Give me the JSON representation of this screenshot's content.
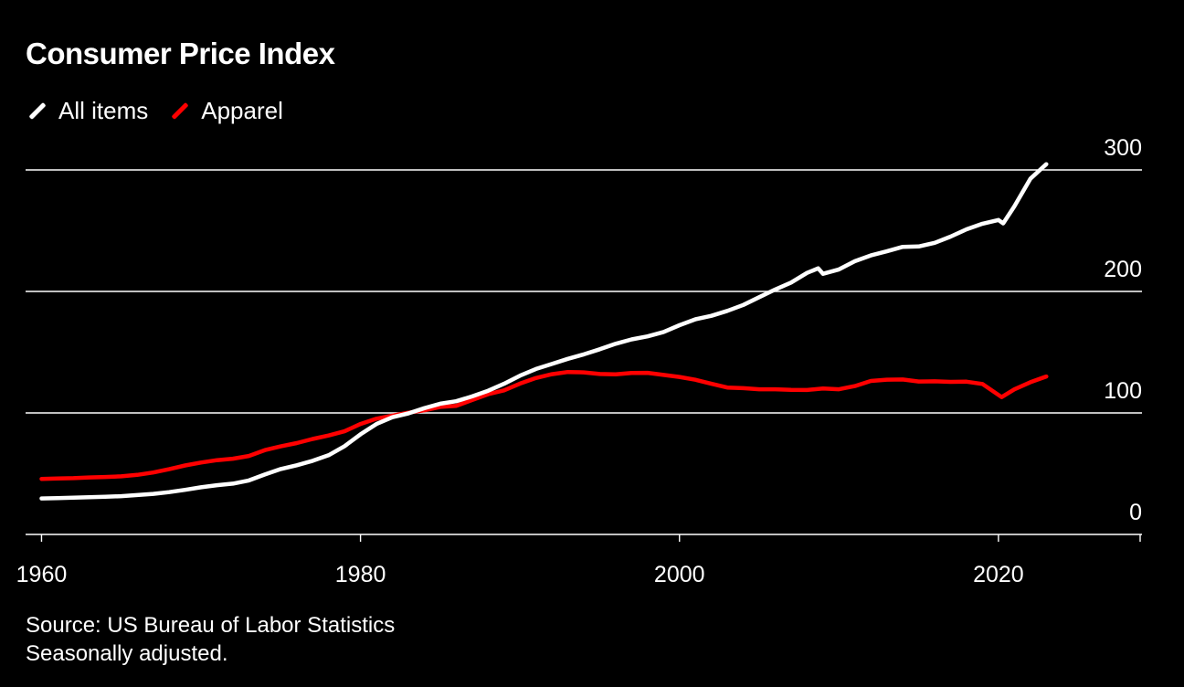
{
  "title": "Consumer Price Index",
  "legend": [
    {
      "label": "All items",
      "color": "#ffffff"
    },
    {
      "label": "Apparel",
      "color": "#ff0000"
    }
  ],
  "footer": {
    "source": "Source: US Bureau of Labor Statistics",
    "note": "Seasonally adjusted."
  },
  "chart_data": {
    "type": "line",
    "title": "Consumer Price Index",
    "xlabel": "",
    "ylabel": "",
    "xlim": [
      1959,
      2029
    ],
    "ylim": [
      0,
      300
    ],
    "x_ticks": [
      {
        "value": 1960,
        "label": "1960"
      },
      {
        "value": 1980,
        "label": "1980"
      },
      {
        "value": 2000,
        "label": "2000"
      },
      {
        "value": 2020,
        "label": "2020"
      }
    ],
    "y_ticks": [
      {
        "value": 0,
        "label": "0"
      },
      {
        "value": 100,
        "label": "100"
      },
      {
        "value": 200,
        "label": "200"
      },
      {
        "value": 300,
        "label": "300"
      }
    ],
    "series": [
      {
        "name": "All items",
        "color": "#ffffff",
        "points": [
          [
            1960,
            29.6
          ],
          [
            1961,
            29.9
          ],
          [
            1962,
            30.2
          ],
          [
            1963,
            30.6
          ],
          [
            1964,
            31.0
          ],
          [
            1965,
            31.5
          ],
          [
            1966,
            32.4
          ],
          [
            1967,
            33.4
          ],
          [
            1968,
            34.8
          ],
          [
            1969,
            36.7
          ],
          [
            1970,
            38.8
          ],
          [
            1971,
            40.5
          ],
          [
            1972,
            41.8
          ],
          [
            1973,
            44.4
          ],
          [
            1974,
            49.3
          ],
          [
            1975,
            53.8
          ],
          [
            1976,
            56.9
          ],
          [
            1977,
            60.6
          ],
          [
            1978,
            65.2
          ],
          [
            1979,
            72.6
          ],
          [
            1980,
            82.4
          ],
          [
            1981,
            90.9
          ],
          [
            1982,
            96.5
          ],
          [
            1983,
            99.6
          ],
          [
            1984,
            103.9
          ],
          [
            1985,
            107.6
          ],
          [
            1986,
            109.6
          ],
          [
            1987,
            113.6
          ],
          [
            1988,
            118.3
          ],
          [
            1989,
            124.0
          ],
          [
            1990,
            130.7
          ],
          [
            1991,
            136.2
          ],
          [
            1992,
            140.3
          ],
          [
            1993,
            144.5
          ],
          [
            1994,
            148.2
          ],
          [
            1995,
            152.4
          ],
          [
            1996,
            156.9
          ],
          [
            1997,
            160.5
          ],
          [
            1998,
            163.0
          ],
          [
            1999,
            166.6
          ],
          [
            2000,
            172.2
          ],
          [
            2001,
            177.1
          ],
          [
            2002,
            179.9
          ],
          [
            2003,
            184.0
          ],
          [
            2004,
            188.9
          ],
          [
            2005,
            195.3
          ],
          [
            2006,
            201.6
          ],
          [
            2007,
            207.3
          ],
          [
            2008,
            215.3
          ],
          [
            2008.7,
            219.0
          ],
          [
            2009,
            214.5
          ],
          [
            2010,
            218.1
          ],
          [
            2011,
            224.9
          ],
          [
            2012,
            229.6
          ],
          [
            2013,
            233.0
          ],
          [
            2014,
            236.7
          ],
          [
            2015,
            237.0
          ],
          [
            2016,
            240.0
          ],
          [
            2017,
            245.1
          ],
          [
            2018,
            251.1
          ],
          [
            2019,
            255.7
          ],
          [
            2020,
            258.8
          ],
          [
            2020.3,
            256.0
          ],
          [
            2021,
            270.0
          ],
          [
            2022,
            292.7
          ],
          [
            2023,
            304.7
          ]
        ]
      },
      {
        "name": "Apparel",
        "color": "#ff0000",
        "points": [
          [
            1960,
            45.7
          ],
          [
            1961,
            46.1
          ],
          [
            1962,
            46.3
          ],
          [
            1963,
            46.9
          ],
          [
            1964,
            47.3
          ],
          [
            1965,
            47.8
          ],
          [
            1966,
            49.0
          ],
          [
            1967,
            51.0
          ],
          [
            1968,
            53.7
          ],
          [
            1969,
            56.8
          ],
          [
            1970,
            59.2
          ],
          [
            1971,
            61.1
          ],
          [
            1972,
            62.3
          ],
          [
            1973,
            64.6
          ],
          [
            1974,
            69.4
          ],
          [
            1975,
            72.5
          ],
          [
            1976,
            75.2
          ],
          [
            1977,
            78.6
          ],
          [
            1978,
            81.4
          ],
          [
            1979,
            84.9
          ],
          [
            1980,
            90.9
          ],
          [
            1981,
            95.3
          ],
          [
            1982,
            97.8
          ],
          [
            1983,
            100.2
          ],
          [
            1984,
            102.1
          ],
          [
            1985,
            105.0
          ],
          [
            1986,
            105.9
          ],
          [
            1987,
            110.6
          ],
          [
            1988,
            115.4
          ],
          [
            1989,
            118.6
          ],
          [
            1990,
            124.1
          ],
          [
            1991,
            128.7
          ],
          [
            1992,
            131.9
          ],
          [
            1993,
            133.7
          ],
          [
            1994,
            133.4
          ],
          [
            1995,
            132.0
          ],
          [
            1996,
            131.7
          ],
          [
            1997,
            132.9
          ],
          [
            1998,
            133.0
          ],
          [
            1999,
            131.3
          ],
          [
            2000,
            129.6
          ],
          [
            2001,
            127.3
          ],
          [
            2002,
            124.0
          ],
          [
            2003,
            120.9
          ],
          [
            2004,
            120.4
          ],
          [
            2005,
            119.5
          ],
          [
            2006,
            119.5
          ],
          [
            2007,
            119.0
          ],
          [
            2008,
            118.9
          ],
          [
            2009,
            120.1
          ],
          [
            2010,
            119.5
          ],
          [
            2011,
            122.1
          ],
          [
            2012,
            126.3
          ],
          [
            2013,
            127.4
          ],
          [
            2014,
            127.5
          ],
          [
            2015,
            125.9
          ],
          [
            2016,
            126.0
          ],
          [
            2017,
            125.6
          ],
          [
            2018,
            125.7
          ],
          [
            2019,
            123.8
          ],
          [
            2020.2,
            113.0
          ],
          [
            2021,
            119.4
          ],
          [
            2022,
            125.3
          ],
          [
            2023,
            130.0
          ]
        ]
      }
    ]
  }
}
